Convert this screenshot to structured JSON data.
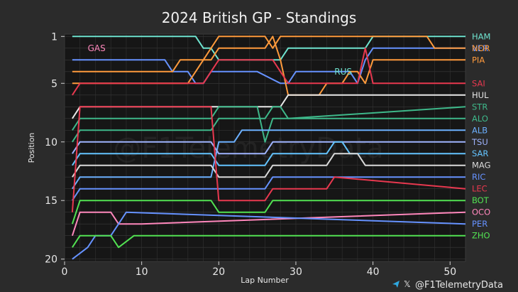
{
  "chart_data": {
    "type": "line",
    "title": "2024 British GP - Standings",
    "xlabel": "Lap Number",
    "ylabel": "Position",
    "xlim": [
      0,
      52
    ],
    "ylim": [
      20.2,
      0.8
    ],
    "x_ticks": [
      0,
      10,
      20,
      30,
      40,
      50
    ],
    "y_ticks": [
      1,
      5,
      10,
      15,
      20
    ],
    "grid": true,
    "watermark": "@F1TelemetryData",
    "credit": "@F1TelemetryData",
    "inline_labels": [
      {
        "text": "GAS",
        "color": "#ff87bc",
        "x": 3,
        "y": 2.0
      },
      {
        "text": "RUS",
        "color": "#6fe3cf",
        "x": 35,
        "y": 4.0
      }
    ],
    "series": [
      {
        "name": "HAM",
        "color": "#6fe3cf",
        "points": [
          [
            1,
            1
          ],
          [
            17,
            1
          ],
          [
            18,
            2
          ],
          [
            19,
            2
          ],
          [
            20,
            3
          ],
          [
            25,
            3
          ],
          [
            28,
            3
          ],
          [
            29,
            2
          ],
          [
            37,
            2
          ],
          [
            38,
            2
          ],
          [
            39,
            2
          ],
          [
            40,
            1
          ],
          [
            52,
            1
          ]
        ]
      },
      {
        "name": "VER",
        "color": "#6692ff",
        "points": [
          [
            1,
            3
          ],
          [
            13,
            3
          ],
          [
            14,
            4
          ],
          [
            16,
            4
          ],
          [
            17,
            5
          ],
          [
            18,
            5
          ],
          [
            19,
            4
          ],
          [
            20,
            4
          ],
          [
            21,
            4
          ],
          [
            25,
            4
          ],
          [
            28,
            5
          ],
          [
            29,
            5
          ],
          [
            30,
            4
          ],
          [
            37,
            4
          ],
          [
            38,
            5
          ],
          [
            39,
            3
          ],
          [
            40,
            2
          ],
          [
            52,
            2
          ]
        ]
      },
      {
        "name": "NOR",
        "color": "#ff9a3c",
        "points": [
          [
            1,
            4
          ],
          [
            14,
            4
          ],
          [
            15,
            3
          ],
          [
            18,
            3
          ],
          [
            19,
            2
          ],
          [
            20,
            1
          ],
          [
            26,
            1
          ],
          [
            27,
            2
          ],
          [
            28,
            1
          ],
          [
            29,
            1
          ],
          [
            30,
            1
          ],
          [
            47,
            1
          ],
          [
            48,
            2
          ],
          [
            52,
            2
          ]
        ]
      },
      {
        "name": "PIA",
        "color": "#ff9a3c",
        "points": [
          [
            1,
            5
          ],
          [
            16,
            5
          ],
          [
            17,
            4
          ],
          [
            18,
            3
          ],
          [
            19,
            3
          ],
          [
            20,
            2
          ],
          [
            26,
            2
          ],
          [
            27,
            1
          ],
          [
            28,
            3
          ],
          [
            29,
            6
          ],
          [
            30,
            6
          ],
          [
            33,
            6
          ],
          [
            34,
            5
          ],
          [
            36,
            5
          ],
          [
            37,
            4
          ],
          [
            38,
            4
          ],
          [
            39,
            5
          ],
          [
            40,
            3
          ],
          [
            52,
            3
          ]
        ]
      },
      {
        "name": "SAI",
        "color": "#e8384f",
        "points": [
          [
            1,
            6
          ],
          [
            2,
            5
          ],
          [
            18,
            5
          ],
          [
            19,
            4
          ],
          [
            20,
            3
          ],
          [
            26,
            3
          ],
          [
            27,
            3
          ],
          [
            28,
            4
          ],
          [
            29,
            5
          ],
          [
            30,
            5
          ],
          [
            38,
            5
          ],
          [
            39,
            2
          ],
          [
            40,
            5
          ],
          [
            52,
            5
          ]
        ]
      },
      {
        "name": "HUL",
        "color": "#e8e8e8",
        "points": [
          [
            1,
            8
          ],
          [
            2,
            7
          ],
          [
            28,
            7
          ],
          [
            29,
            6
          ],
          [
            32,
            6
          ],
          [
            33,
            6
          ],
          [
            34,
            6
          ],
          [
            52,
            6
          ]
        ]
      },
      {
        "name": "STR",
        "color": "#3eb88a",
        "points": [
          [
            1,
            10
          ],
          [
            2,
            9
          ],
          [
            19,
            9
          ],
          [
            20,
            8
          ],
          [
            26,
            8
          ],
          [
            27,
            7
          ],
          [
            28,
            7
          ],
          [
            29,
            8
          ],
          [
            52,
            7
          ]
        ]
      },
      {
        "name": "ALO",
        "color": "#3eb88a",
        "points": [
          [
            1,
            9
          ],
          [
            2,
            8
          ],
          [
            18,
            8
          ],
          [
            19,
            8
          ],
          [
            20,
            7
          ],
          [
            25,
            7
          ],
          [
            26,
            10
          ],
          [
            27,
            8
          ],
          [
            28,
            8
          ],
          [
            29,
            8
          ],
          [
            52,
            8
          ]
        ]
      },
      {
        "name": "ALB",
        "color": "#6cb0ff",
        "points": [
          [
            1,
            14
          ],
          [
            2,
            13
          ],
          [
            19,
            13
          ],
          [
            20,
            10
          ],
          [
            22,
            10
          ],
          [
            23,
            9
          ],
          [
            27,
            9
          ],
          [
            28,
            9
          ],
          [
            52,
            9
          ]
        ]
      },
      {
        "name": "TSU",
        "color": "#9fb4ff",
        "points": [
          [
            1,
            11
          ],
          [
            2,
            10
          ],
          [
            19,
            10
          ],
          [
            20,
            11
          ],
          [
            26,
            11
          ],
          [
            27,
            10
          ],
          [
            28,
            10
          ],
          [
            52,
            10
          ]
        ]
      },
      {
        "name": "SAR",
        "color": "#64c4ff",
        "points": [
          [
            1,
            12
          ],
          [
            2,
            11
          ],
          [
            19,
            11
          ],
          [
            20,
            12
          ],
          [
            26,
            12
          ],
          [
            27,
            11
          ],
          [
            28,
            11
          ],
          [
            34,
            11
          ],
          [
            35,
            10
          ],
          [
            36,
            10
          ],
          [
            37,
            11
          ],
          [
            52,
            11
          ]
        ]
      },
      {
        "name": "MAG",
        "color": "#d9d9d9",
        "points": [
          [
            1,
            13
          ],
          [
            2,
            12
          ],
          [
            19,
            12
          ],
          [
            20,
            13
          ],
          [
            26,
            13
          ],
          [
            27,
            12
          ],
          [
            28,
            12
          ],
          [
            34,
            12
          ],
          [
            35,
            11
          ],
          [
            38,
            11
          ],
          [
            39,
            12
          ],
          [
            52,
            12
          ]
        ]
      },
      {
        "name": "RIC",
        "color": "#6692ff",
        "points": [
          [
            1,
            15
          ],
          [
            2,
            14
          ],
          [
            19,
            14
          ],
          [
            20,
            14
          ],
          [
            26,
            14
          ],
          [
            27,
            13
          ],
          [
            28,
            13
          ],
          [
            52,
            13
          ]
        ]
      },
      {
        "name": "LEC",
        "color": "#e8384f",
        "points": [
          [
            1,
            16
          ],
          [
            2,
            7
          ],
          [
            18,
            7
          ],
          [
            19,
            7
          ],
          [
            20,
            15
          ],
          [
            26,
            15
          ],
          [
            27,
            14
          ],
          [
            28,
            14
          ],
          [
            34,
            14
          ],
          [
            35,
            13
          ],
          [
            52,
            14
          ]
        ]
      },
      {
        "name": "BOT",
        "color": "#52e252",
        "points": [
          [
            1,
            17
          ],
          [
            2,
            15
          ],
          [
            19,
            15
          ],
          [
            20,
            16
          ],
          [
            26,
            16
          ],
          [
            27,
            15
          ],
          [
            28,
            15
          ],
          [
            52,
            15
          ]
        ]
      },
      {
        "name": "OCO",
        "color": "#ff87bc",
        "points": [
          [
            1,
            18
          ],
          [
            2,
            16
          ],
          [
            6,
            16
          ],
          [
            7,
            17
          ],
          [
            8,
            17
          ],
          [
            9,
            17
          ],
          [
            10,
            17
          ],
          [
            52,
            16
          ]
        ]
      },
      {
        "name": "PER",
        "color": "#6692ff",
        "points": [
          [
            1,
            20
          ],
          [
            3,
            19
          ],
          [
            4,
            18
          ],
          [
            6,
            18
          ],
          [
            7,
            17
          ],
          [
            8,
            16
          ],
          [
            52,
            17
          ]
        ]
      },
      {
        "name": "ZHO",
        "color": "#52e252",
        "points": [
          [
            1,
            19
          ],
          [
            2,
            18
          ],
          [
            6,
            18
          ],
          [
            7,
            19
          ],
          [
            9,
            18
          ],
          [
            10,
            18
          ],
          [
            52,
            18
          ]
        ]
      }
    ]
  }
}
